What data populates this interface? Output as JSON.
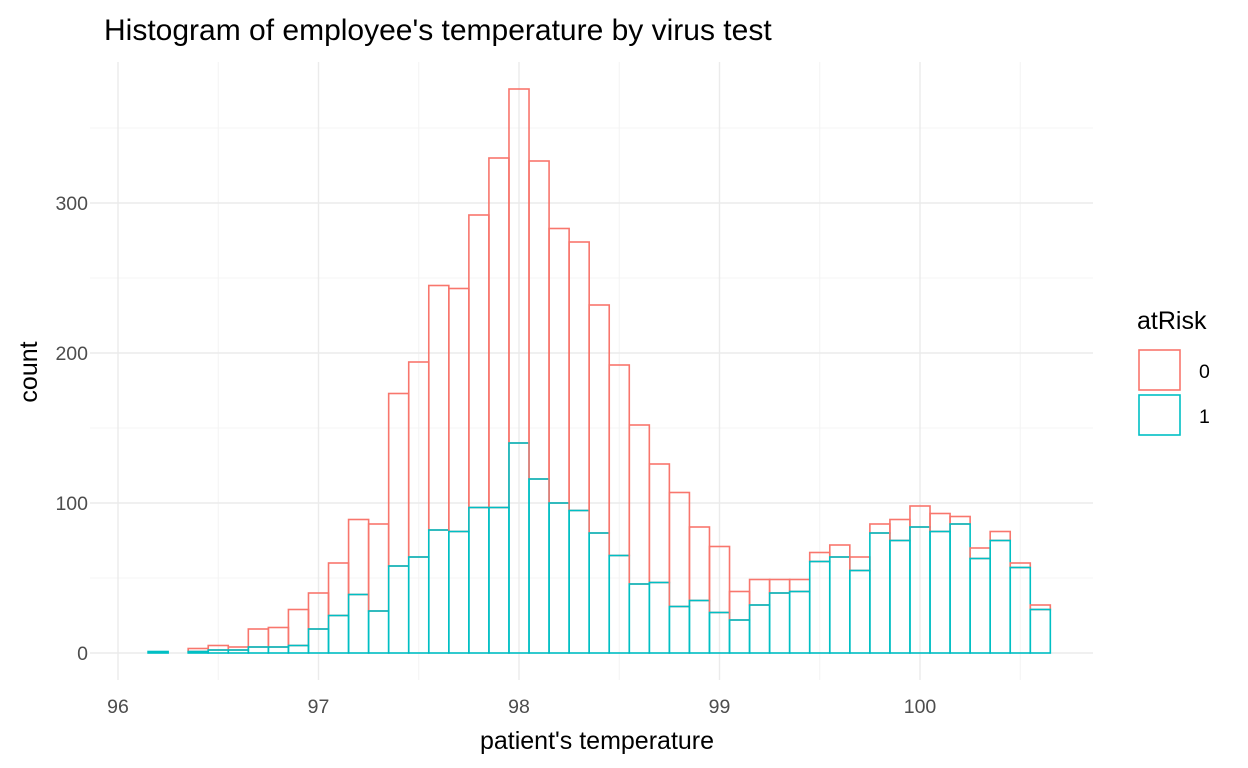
{
  "chart_data": {
    "type": "bar",
    "subtype": "stacked-histogram",
    "title": "Histogram of employee's temperature by virus test",
    "xlabel": "patient's temperature",
    "ylabel": "count",
    "xlim": [
      96,
      100.75
    ],
    "ylim": [
      0,
      375
    ],
    "x_ticks": [
      96,
      97,
      98,
      99,
      100
    ],
    "y_ticks": [
      0,
      100,
      200,
      300
    ],
    "grid": true,
    "legend": {
      "title": "atRisk",
      "position": "right"
    },
    "bin_width": 0.1,
    "bin_centers": [
      96.2,
      96.3,
      96.4,
      96.5,
      96.6,
      96.7,
      96.8,
      96.9,
      97.0,
      97.1,
      97.2,
      97.3,
      97.4,
      97.5,
      97.6,
      97.7,
      97.8,
      97.9,
      98.0,
      98.1,
      98.2,
      98.3,
      98.4,
      98.5,
      98.6,
      98.7,
      98.8,
      98.9,
      99.0,
      99.1,
      99.2,
      99.3,
      99.4,
      99.5,
      99.6,
      99.7,
      99.8,
      99.9,
      100.0,
      100.1,
      100.2,
      100.3,
      100.4,
      100.5,
      100.6
    ],
    "series": [
      {
        "name": "0",
        "color": "#F8766D",
        "values": [
          0,
          0,
          2,
          3,
          2,
          12,
          13,
          24,
          24,
          35,
          50,
          58,
          115,
          130,
          163,
          162,
          195,
          233,
          236,
          212,
          183,
          179,
          152,
          127,
          106,
          79,
          76,
          49,
          44,
          19,
          17,
          9,
          8,
          6,
          8,
          9,
          6,
          14,
          14,
          12,
          5,
          7,
          6,
          3,
          3
        ]
      },
      {
        "name": "1",
        "color": "#00BFC4",
        "values": [
          1,
          0,
          1,
          2,
          2,
          4,
          4,
          5,
          16,
          25,
          39,
          28,
          58,
          64,
          82,
          81,
          97,
          97,
          140,
          116,
          100,
          95,
          80,
          65,
          46,
          47,
          31,
          35,
          27,
          22,
          32,
          40,
          41,
          61,
          64,
          55,
          80,
          75,
          84,
          81,
          86,
          63,
          75,
          57,
          29
        ]
      }
    ]
  }
}
